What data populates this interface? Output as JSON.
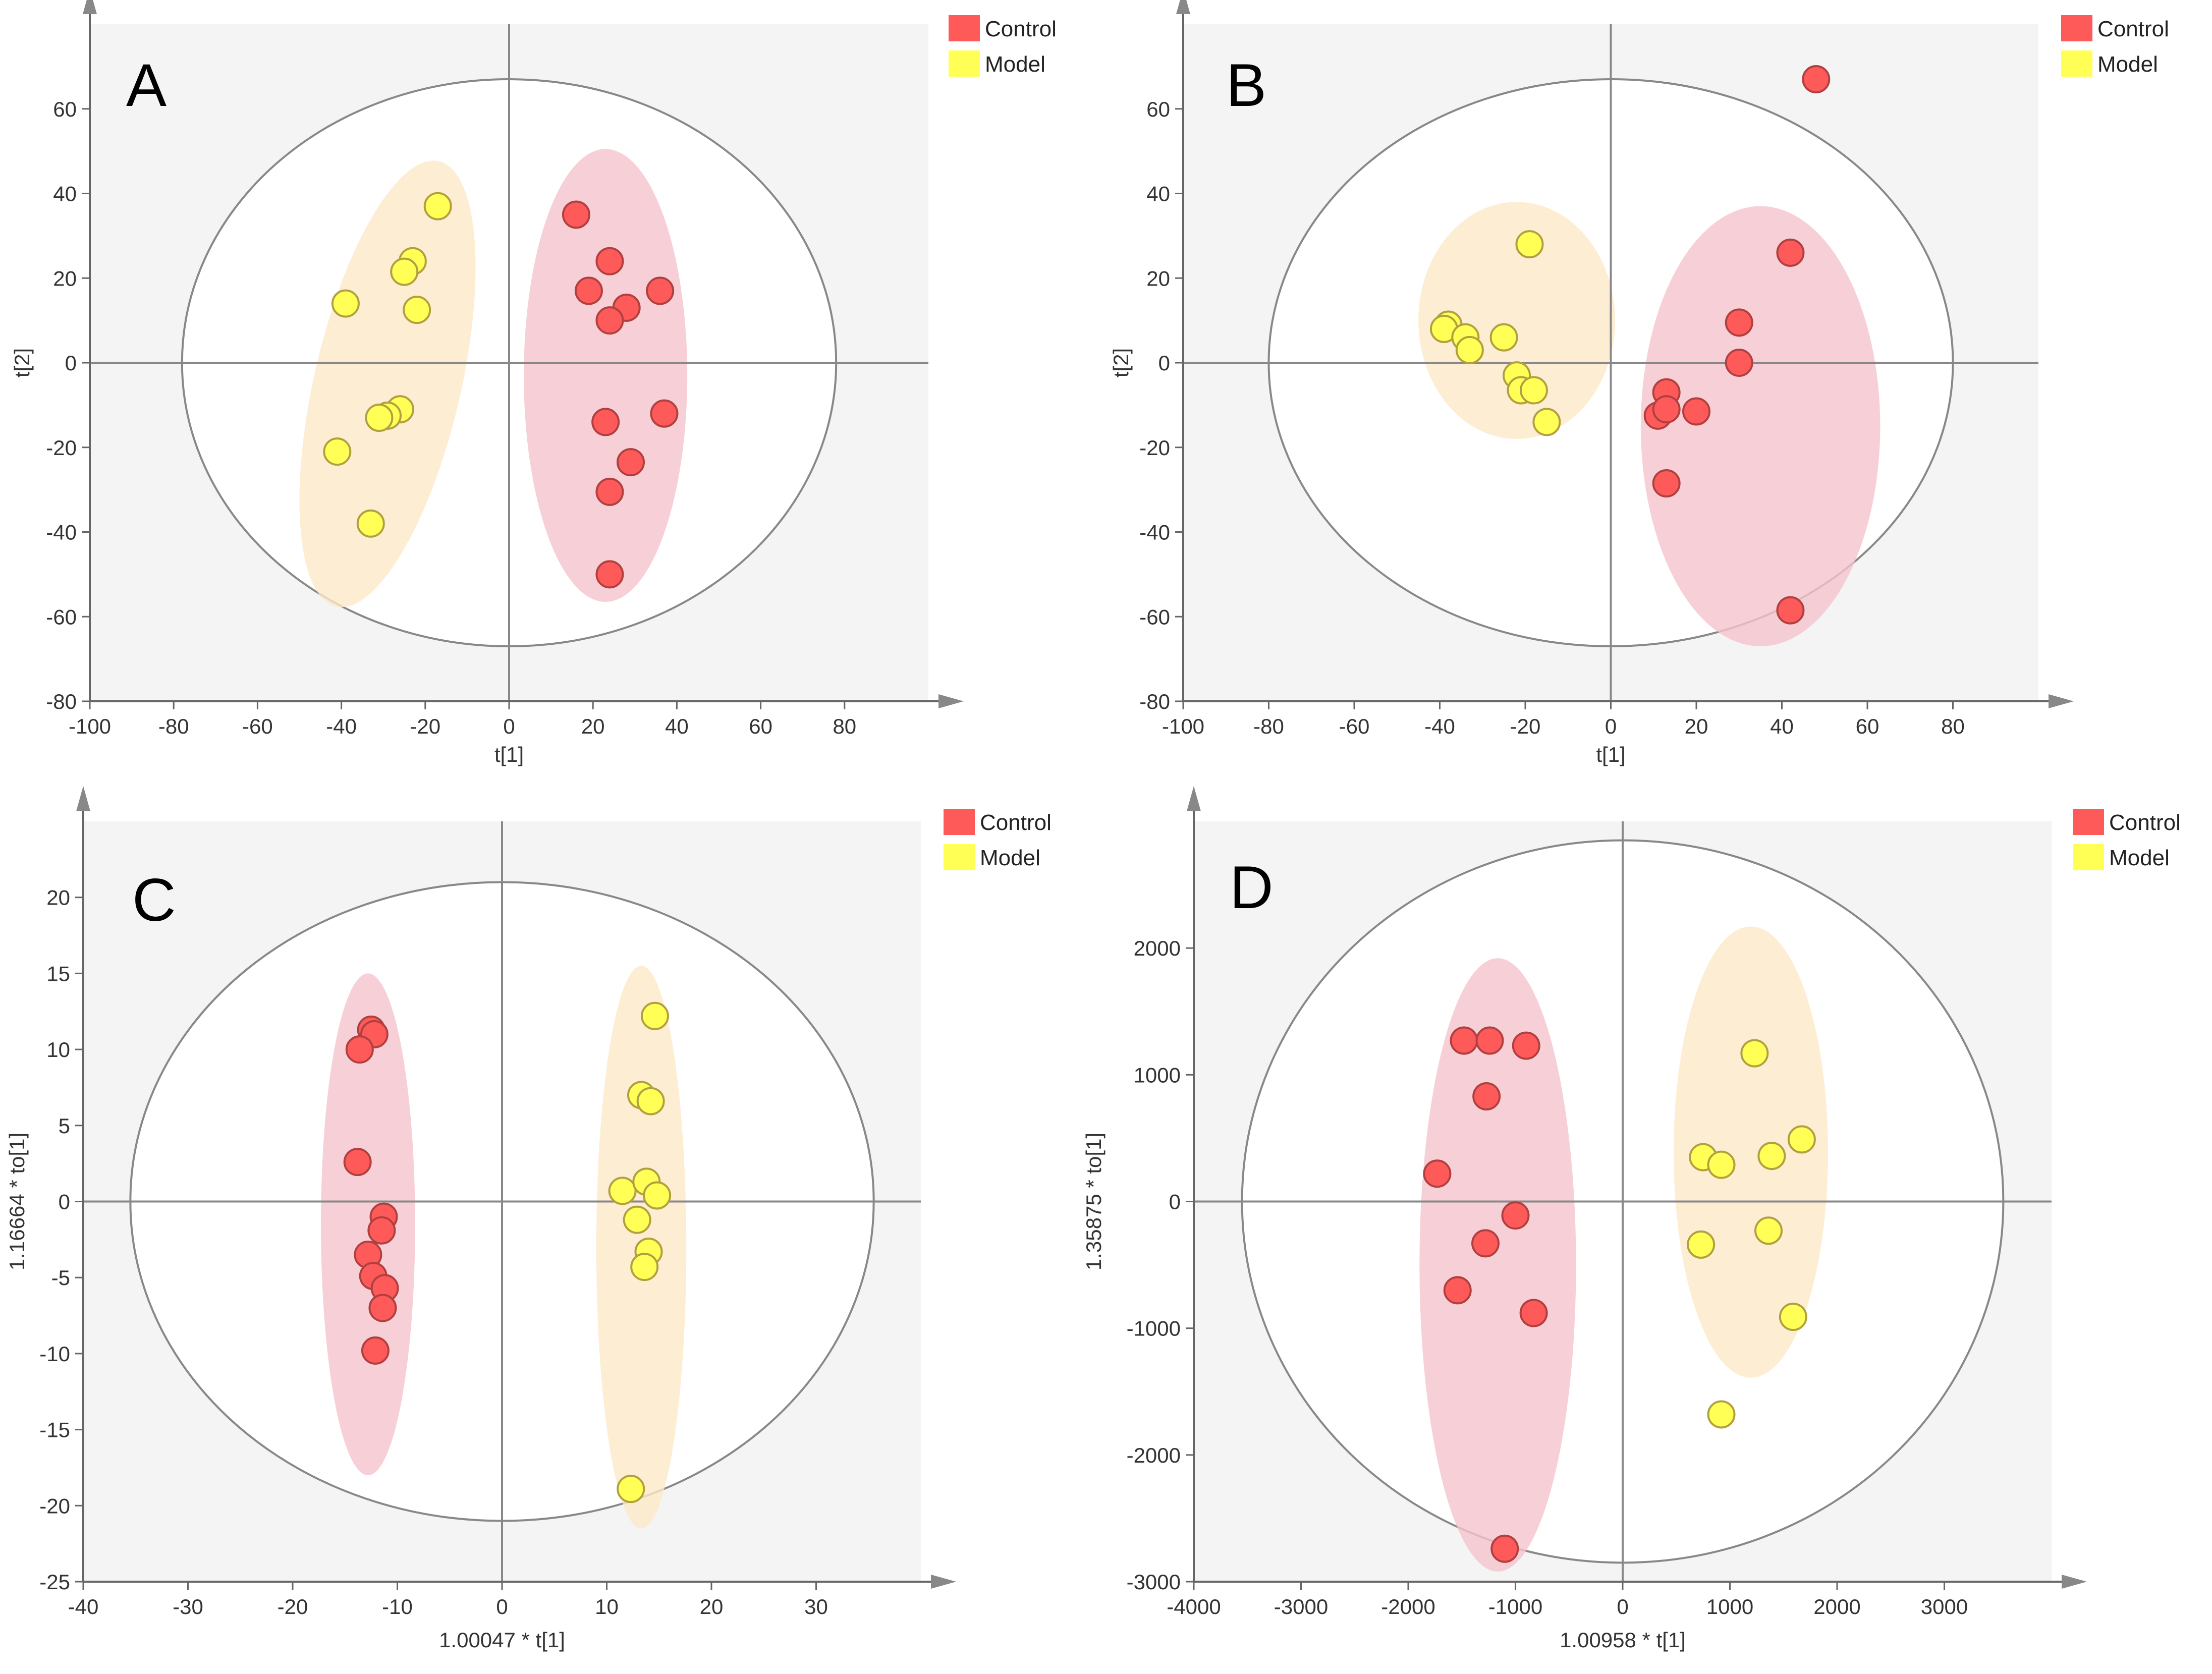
{
  "figure": {
    "description_labels": [
      "A",
      "B",
      "C",
      "D"
    ]
  },
  "legend": {
    "control_label": "Control",
    "model_label": "Model"
  },
  "colors": {
    "control": "#ff5a5a",
    "model": "#ffff55",
    "control_ellipse": "#f4c4cc",
    "model_ellipse": "#fde8c8",
    "plot_bg": "#f4f4f4",
    "axis": "#666666",
    "hotelling": "#888888"
  },
  "chart_data": [
    {
      "id": "A",
      "type": "scatter",
      "title": "A",
      "xlabel": "t[1]",
      "ylabel": "t[2]",
      "xlim": [
        -100,
        100
      ],
      "ylim": [
        -80,
        80
      ],
      "xticks": [
        -100,
        -80,
        -60,
        -40,
        -20,
        0,
        20,
        40,
        60,
        80
      ],
      "yticks": [
        -80,
        -60,
        -40,
        -20,
        0,
        20,
        40,
        60
      ],
      "hotelling": {
        "cx": 0,
        "cy": 0,
        "rx": 78,
        "ry": 67
      },
      "series": [
        {
          "name": "Control",
          "ellipse": {
            "cx": 23,
            "cy": -3,
            "rx": 19.5,
            "ry": 53.5,
            "angle": 0
          },
          "points": [
            [
              16,
              35
            ],
            [
              24,
              24
            ],
            [
              19,
              17
            ],
            [
              36,
              17
            ],
            [
              28,
              13
            ],
            [
              24,
              10
            ],
            [
              23,
              -14
            ],
            [
              37,
              -12
            ],
            [
              29,
              -23.5
            ],
            [
              24,
              -30.5
            ],
            [
              24,
              -50
            ]
          ]
        },
        {
          "name": "Model",
          "ellipse": {
            "cx": -29,
            "cy": -5,
            "rx": 17.5,
            "ry": 54,
            "angle": 13
          },
          "points": [
            [
              -17,
              37
            ],
            [
              -23,
              24
            ],
            [
              -25,
              21.5
            ],
            [
              -39,
              14
            ],
            [
              -22,
              12.5
            ],
            [
              -26,
              -11
            ],
            [
              -29,
              -12.5
            ],
            [
              -31,
              -13
            ],
            [
              -41,
              -21
            ],
            [
              -33,
              -38
            ]
          ]
        }
      ]
    },
    {
      "id": "B",
      "type": "scatter",
      "title": "B",
      "xlabel": "t[1]",
      "ylabel": "t[2]",
      "xlim": [
        -100,
        100
      ],
      "ylim": [
        -80,
        80
      ],
      "xticks": [
        -100,
        -80,
        -60,
        -40,
        -20,
        0,
        20,
        40,
        60,
        80
      ],
      "yticks": [
        -80,
        -60,
        -40,
        -20,
        0,
        20,
        40,
        60
      ],
      "hotelling": {
        "cx": 0,
        "cy": 0,
        "rx": 80,
        "ry": 67
      },
      "series": [
        {
          "name": "Control",
          "ellipse": {
            "cx": 35,
            "cy": -15,
            "rx": 28,
            "ry": 52,
            "angle": 0
          },
          "points": [
            [
              48,
              67
            ],
            [
              42,
              26
            ],
            [
              30,
              9.5
            ],
            [
              30,
              0
            ],
            [
              13,
              -7
            ],
            [
              11,
              -12.5
            ],
            [
              13,
              -11
            ],
            [
              20,
              -11.5
            ],
            [
              13,
              -28.5
            ],
            [
              42,
              -58.5
            ]
          ]
        },
        {
          "name": "Model",
          "ellipse": {
            "cx": -22,
            "cy": 10,
            "rx": 23,
            "ry": 28,
            "angle": 0
          },
          "points": [
            [
              -19,
              28
            ],
            [
              -38,
              9
            ],
            [
              -39,
              8
            ],
            [
              -34,
              6
            ],
            [
              -25,
              6
            ],
            [
              -33,
              3
            ],
            [
              -22,
              -3
            ],
            [
              -21,
              -6.5
            ],
            [
              -18,
              -6.5
            ],
            [
              -15,
              -14
            ]
          ]
        }
      ]
    },
    {
      "id": "C",
      "type": "scatter",
      "title": "C",
      "xlabel": "1.00047 * t[1]",
      "ylabel": "1.16664 * to[1]",
      "xlim": [
        -40,
        40
      ],
      "ylim": [
        -25,
        25
      ],
      "xticks": [
        -40,
        -30,
        -20,
        -10,
        0,
        10,
        20,
        30
      ],
      "yticks": [
        -25,
        -20,
        -15,
        -10,
        -5,
        0,
        5,
        10,
        15,
        20
      ],
      "hotelling": {
        "cx": 0,
        "cy": 0,
        "rx": 35.5,
        "ry": 21
      },
      "series": [
        {
          "name": "Control",
          "ellipse": {
            "cx": -12.8,
            "cy": -1.5,
            "rx": 4.5,
            "ry": 16.5,
            "angle": 0
          },
          "points": [
            [
              -12.5,
              11.3
            ],
            [
              -12.2,
              11
            ],
            [
              -13.6,
              10
            ],
            [
              -13.8,
              2.6
            ],
            [
              -11.3,
              -1
            ],
            [
              -11.5,
              -1.9
            ],
            [
              -12.8,
              -3.5
            ],
            [
              -12.3,
              -4.9
            ],
            [
              -11.2,
              -5.7
            ],
            [
              -11.4,
              -7
            ],
            [
              -12.1,
              -9.8
            ]
          ]
        },
        {
          "name": "Model",
          "ellipse": {
            "cx": 13.3,
            "cy": -3,
            "rx": 4.3,
            "ry": 18.5,
            "angle": 0
          },
          "points": [
            [
              14.6,
              12.2
            ],
            [
              13.3,
              7
            ],
            [
              14.2,
              6.6
            ],
            [
              11.5,
              0.7
            ],
            [
              13.8,
              1.3
            ],
            [
              14.8,
              0.4
            ],
            [
              12.9,
              -1.2
            ],
            [
              14,
              -3.3
            ],
            [
              13.6,
              -4.3
            ],
            [
              12.3,
              -18.9
            ]
          ]
        }
      ]
    },
    {
      "id": "D",
      "type": "scatter",
      "title": "D",
      "xlabel": "1.00958 * t[1]",
      "ylabel": "1.35875 * to[1]",
      "xlim": [
        -4000,
        4000
      ],
      "ylim": [
        -3000,
        3000
      ],
      "xticks": [
        -4000,
        -3000,
        -2000,
        -1000,
        0,
        1000,
        2000,
        3000
      ],
      "yticks": [
        -3000,
        -2000,
        -1000,
        0,
        1000,
        2000
      ],
      "hotelling": {
        "cx": 0,
        "cy": 0,
        "rx": 3550,
        "ry": 2850
      },
      "series": [
        {
          "name": "Control",
          "ellipse": {
            "cx": -1165,
            "cy": -500,
            "rx": 730,
            "ry": 2420,
            "angle": 0
          },
          "points": [
            [
              -1480,
              1270
            ],
            [
              -1240,
              1270
            ],
            [
              -900,
              1230
            ],
            [
              -1270,
              830
            ],
            [
              -1730,
              220
            ],
            [
              -1000,
              -110
            ],
            [
              -1280,
              -330
            ],
            [
              -1540,
              -700
            ],
            [
              -830,
              -880
            ],
            [
              -1100,
              -2740
            ]
          ]
        },
        {
          "name": "Model",
          "ellipse": {
            "cx": 1195,
            "cy": 390,
            "rx": 720,
            "ry": 1780,
            "angle": 0
          },
          "points": [
            [
              1230,
              1170
            ],
            [
              1670,
              490
            ],
            [
              750,
              350
            ],
            [
              920,
              290
            ],
            [
              1390,
              360
            ],
            [
              730,
              -340
            ],
            [
              1360,
              -230
            ],
            [
              1590,
              -910
            ],
            [
              920,
              -1680
            ]
          ]
        }
      ]
    }
  ]
}
